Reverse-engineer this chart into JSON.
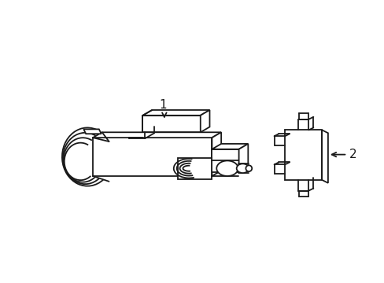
{
  "bg_color": "#ffffff",
  "line_color": "#1a1a1a",
  "line_width": 1.3,
  "label1": "1",
  "label2": "2",
  "figsize": [
    4.89,
    3.6
  ],
  "dpi": 100
}
